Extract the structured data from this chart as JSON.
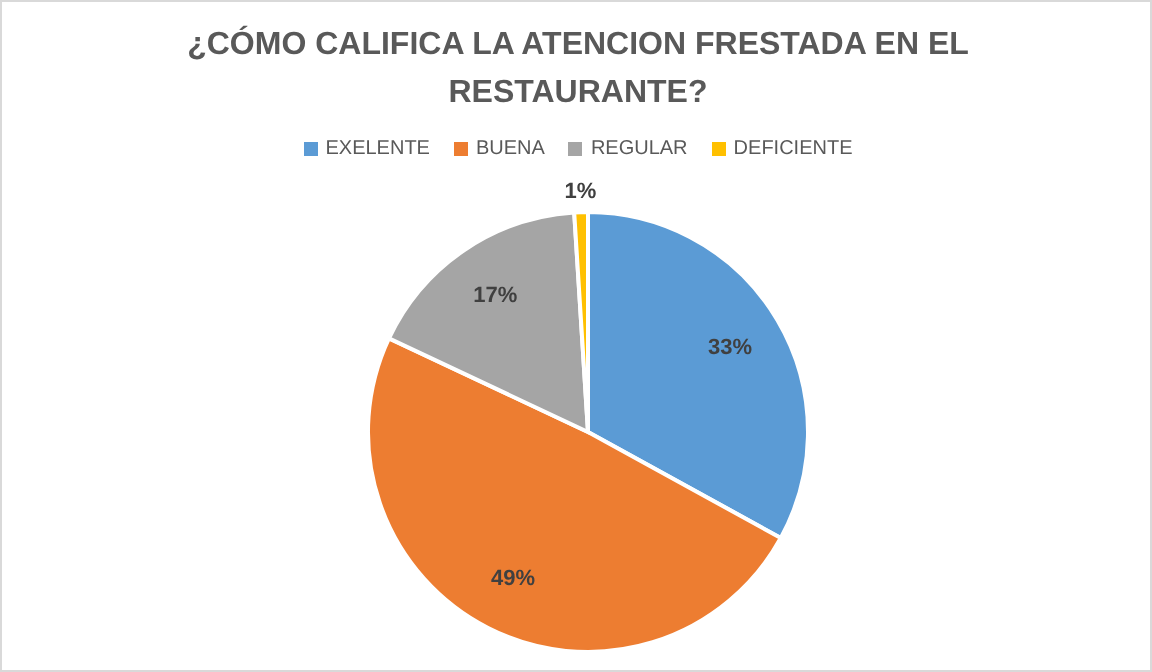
{
  "chart_data": {
    "type": "pie",
    "title": "¿CÓMO CALIFICA LA ATENCION FRESTADA EN EL RESTAURANTE?",
    "categories": [
      "EXELENTE",
      "BUENA",
      "REGULAR",
      "DEFICIENTE"
    ],
    "values": [
      33,
      49,
      17,
      1
    ],
    "colors": [
      "#5b9bd5",
      "#ed7d31",
      "#a5a5a5",
      "#ffc000"
    ],
    "value_labels": [
      "33%",
      "49%",
      "17%",
      "1%"
    ],
    "legend": "top"
  }
}
